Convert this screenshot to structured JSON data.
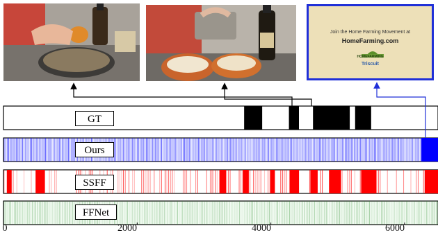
{
  "colors": {
    "gt": "#000000",
    "ours": "#0000ff",
    "ssff": "#ff0000",
    "ffnet": "#2e8b2e",
    "ad_border": "#1f2fd8"
  },
  "thumbnails": [
    {
      "name": "cooking-frame-1",
      "content": "hands squeezing orange over pan on stove"
    },
    {
      "name": "cooking-frame-2",
      "content": "pouring pasta into pot with bowls and wine bottle"
    },
    {
      "name": "advertisement-frame",
      "content": "advertisement card"
    }
  ],
  "ad": {
    "line1": "Join the Home Farming Movement at",
    "line2": "HomeFarming.com",
    "logo_text": "HOMEFARMING",
    "brand": "Triscuit"
  },
  "rows": [
    {
      "key": "gt",
      "label": "GT"
    },
    {
      "key": "ours",
      "label": "Ours"
    },
    {
      "key": "ssff",
      "label": "SSFF"
    },
    {
      "key": "ffnet",
      "label": "FFNet"
    }
  ],
  "axis": {
    "min": 0,
    "max": 6500,
    "ticks": [
      0,
      2000,
      4000,
      6000
    ],
    "tick_labels": [
      "0",
      "2000",
      "4000",
      "6000"
    ]
  },
  "segments": {
    "gt": [
      [
        3600,
        3870
      ],
      [
        4270,
        4420
      ],
      [
        4630,
        5180
      ],
      [
        5260,
        5500
      ]
    ],
    "ours_solid": [
      [
        6250,
        6500
      ]
    ],
    "ssff_solid": [
      [
        50,
        120
      ],
      [
        480,
        620
      ],
      [
        3230,
        3330
      ],
      [
        3580,
        3670
      ],
      [
        3990,
        4060
      ],
      [
        4280,
        4420
      ],
      [
        4590,
        4700
      ],
      [
        4870,
        5050
      ],
      [
        5350,
        5580
      ],
      [
        6300,
        6500
      ]
    ]
  }
}
